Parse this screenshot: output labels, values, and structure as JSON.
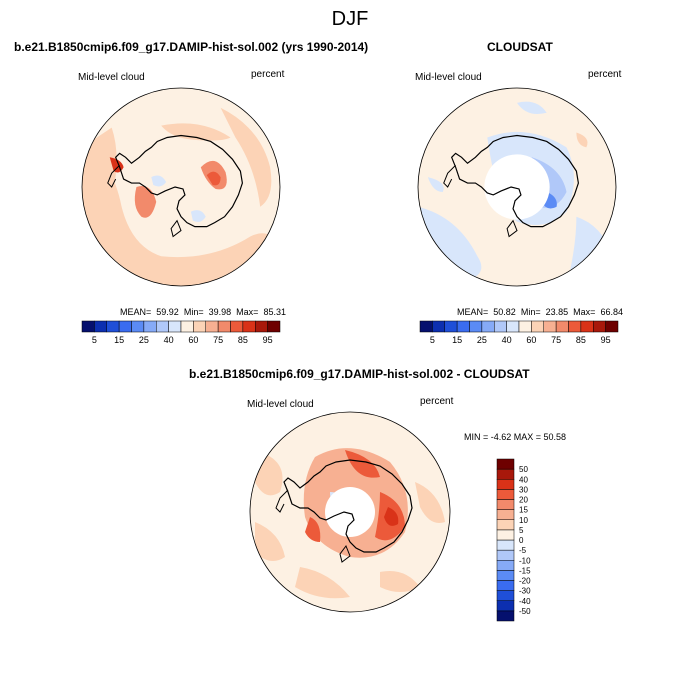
{
  "figure": {
    "title": "DJF",
    "colors": {
      "land_outline": "#000000",
      "missing": "#ffffff"
    }
  },
  "panels": [
    {
      "id": "model",
      "title": "b.e21.B1850cmip6.f09_g17.DAMIP-hist-sol.002 (yrs 1990-2014)",
      "left_label": "Mid-level cloud",
      "right_label": "percent",
      "stats": {
        "mean_label": "MEAN=",
        "mean": "59.92",
        "min_label": "Min=",
        "min": "39.98",
        "max_label": "Max=",
        "max": "85.31"
      }
    },
    {
      "id": "obs",
      "title": "CLOUDSAT",
      "left_label": "Mid-level cloud",
      "right_label": "percent",
      "stats": {
        "mean_label": "MEAN=",
        "mean": "50.82",
        "min_label": "Min=",
        "min": "23.85",
        "max_label": "Max=",
        "max": "66.84"
      }
    },
    {
      "id": "diff",
      "title": "b.e21.B1850cmip6.f09_g17.DAMIP-hist-sol.002 - CLOUDSAT",
      "left_label": "Mid-level cloud",
      "right_label": "percent",
      "stats_text": "MIN =  -4.62 MAX =  50.58"
    }
  ],
  "chart_data": [
    {
      "type": "heatmap",
      "projection": "south-polar-stereographic",
      "title": "b.e21.B1850cmip6.f09_g17.DAMIP-hist-sol.002 (yrs 1990-2014)",
      "variable": "Mid-level cloud",
      "units": "percent",
      "mean": 59.92,
      "min": 39.98,
      "max": 85.31,
      "colorbar": {
        "orientation": "horizontal",
        "levels": [
          5,
          10,
          15,
          20,
          25,
          30,
          40,
          50,
          60,
          70,
          75,
          80,
          85,
          90,
          95
        ],
        "tick_labels": [
          "5",
          "15",
          "25",
          "40",
          "60",
          "75",
          "85",
          "95"
        ],
        "colors": [
          "#05106e",
          "#0c2fb0",
          "#1f4fd8",
          "#3a6cf0",
          "#5b8bf5",
          "#86aaf7",
          "#b0c8f9",
          "#d8e6fb",
          "#fdf1e3",
          "#fcd3b6",
          "#f7b092",
          "#f28a6b",
          "#ec5a3a",
          "#d93218",
          "#a8180b",
          "#6e0000"
        ]
      }
    },
    {
      "type": "heatmap",
      "projection": "south-polar-stereographic",
      "title": "CLOUDSAT",
      "variable": "Mid-level cloud",
      "units": "percent",
      "mean": 50.82,
      "min": 23.85,
      "max": 66.84,
      "colorbar": {
        "orientation": "horizontal",
        "levels": [
          5,
          10,
          15,
          20,
          25,
          30,
          40,
          50,
          60,
          70,
          75,
          80,
          85,
          90,
          95
        ],
        "tick_labels": [
          "5",
          "15",
          "25",
          "40",
          "60",
          "75",
          "85",
          "95"
        ],
        "colors": [
          "#05106e",
          "#0c2fb0",
          "#1f4fd8",
          "#3a6cf0",
          "#5b8bf5",
          "#86aaf7",
          "#b0c8f9",
          "#d8e6fb",
          "#fdf1e3",
          "#fcd3b6",
          "#f7b092",
          "#f28a6b",
          "#ec5a3a",
          "#d93218",
          "#a8180b",
          "#6e0000"
        ]
      }
    },
    {
      "type": "heatmap",
      "projection": "south-polar-stereographic",
      "title": "b.e21.B1850cmip6.f09_g17.DAMIP-hist-sol.002 - CLOUDSAT",
      "variable": "Mid-level cloud",
      "units": "percent",
      "min": -4.62,
      "max": 50.58,
      "colorbar": {
        "orientation": "vertical",
        "levels": [
          -50,
          -40,
          -30,
          -20,
          -15,
          -10,
          -5,
          0,
          5,
          10,
          15,
          20,
          30,
          40,
          50
        ],
        "tick_labels": [
          "-50",
          "-40",
          "-30",
          "-20",
          "-15",
          "-10",
          "-5",
          "0",
          "5",
          "10",
          "15",
          "20",
          "30",
          "40",
          "50"
        ],
        "colors": [
          "#05106e",
          "#0c2fb0",
          "#1f4fd8",
          "#3a6cf0",
          "#5b8bf5",
          "#86aaf7",
          "#b0c8f9",
          "#d8e6fb",
          "#fdf1e3",
          "#fcd3b6",
          "#f7b092",
          "#f28a6b",
          "#ec5a3a",
          "#d93218",
          "#a8180b",
          "#6e0000"
        ]
      }
    }
  ]
}
